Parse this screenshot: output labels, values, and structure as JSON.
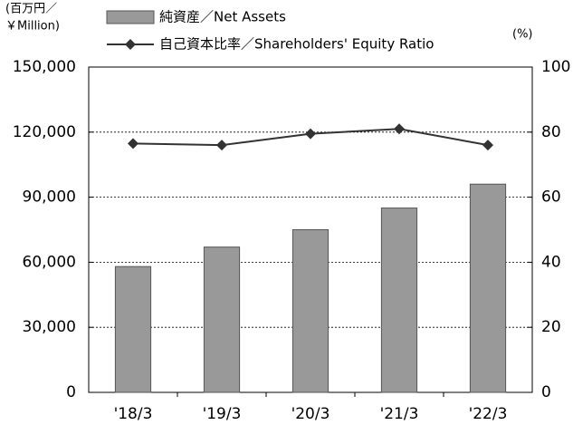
{
  "chart_data": {
    "type": "bar",
    "ylabel": [
      "(百万円／",
      "￥Million)"
    ],
    "y2label": "(%)",
    "categories": [
      "'18/3",
      "'19/3",
      "'20/3",
      "'21/3",
      "'22/3"
    ],
    "series": [
      {
        "name": "純資産／Net Assets",
        "type": "bar",
        "color": "#999999",
        "values": [
          58000,
          67000,
          75000,
          85000,
          96000
        ]
      },
      {
        "name": "自己資本比率／Shareholders' Equity Ratio",
        "type": "line",
        "axis": "y2",
        "color": "#333333",
        "values": [
          76.5,
          76,
          79.5,
          81,
          76
        ]
      }
    ],
    "ylim": [
      0,
      150000
    ],
    "yticks": [
      {
        "value": 0,
        "label": "0"
      },
      {
        "value": 30000,
        "label": "30,000"
      },
      {
        "value": 60000,
        "label": "60,000"
      },
      {
        "value": 90000,
        "label": "90,000"
      },
      {
        "value": 120000,
        "label": "120,000"
      },
      {
        "value": 150000,
        "label": "150,000"
      }
    ],
    "y2lim": [
      0,
      100
    ],
    "y2ticks": [
      0,
      20,
      40,
      60,
      80,
      100
    ],
    "grid": true,
    "legend": "top"
  }
}
